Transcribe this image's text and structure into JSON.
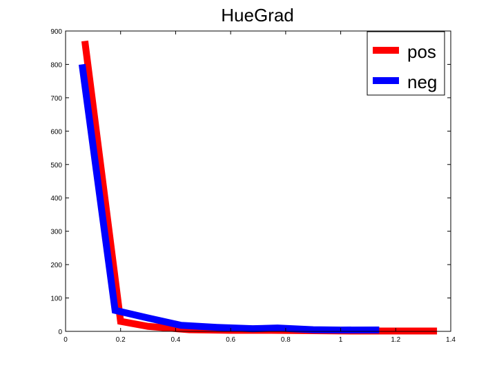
{
  "chart_data": {
    "type": "line",
    "title": "HueGrad",
    "xlabel": "",
    "ylabel": "",
    "xlim": [
      0,
      1.4
    ],
    "ylim": [
      0,
      900
    ],
    "x_ticks": [
      "0",
      "0.2",
      "0.4",
      "0.6",
      "0.8",
      "1",
      "1.2",
      "1.4"
    ],
    "y_ticks": [
      "0",
      "100",
      "200",
      "300",
      "400",
      "500",
      "600",
      "700",
      "800",
      "900"
    ],
    "grid": false,
    "legend_position": "top-right",
    "series": [
      {
        "name": "pos",
        "color": "#ff0000",
        "x": [
          0.07,
          0.2,
          0.3,
          0.45,
          0.6,
          0.75,
          0.9,
          1.05,
          1.2,
          1.35
        ],
        "y": [
          870,
          30,
          15,
          5,
          3,
          3,
          2,
          1,
          1,
          1
        ]
      },
      {
        "name": "neg",
        "color": "#0000ff",
        "x": [
          0.06,
          0.18,
          0.3,
          0.42,
          0.55,
          0.68,
          0.77,
          0.9,
          1.0,
          1.14
        ],
        "y": [
          800,
          63,
          40,
          18,
          12,
          8,
          10,
          5,
          4,
          4
        ]
      }
    ]
  }
}
